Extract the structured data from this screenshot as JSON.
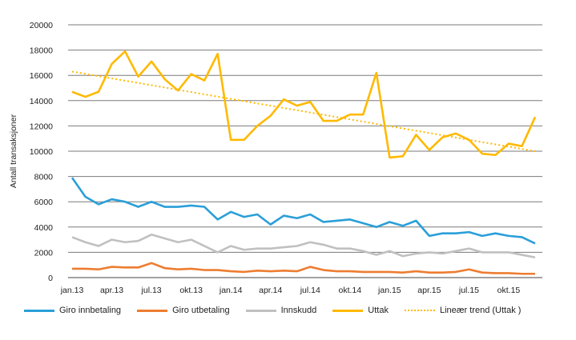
{
  "chart_data": {
    "type": "line",
    "ylabel": "Antall transaksjoner",
    "ylim": [
      0,
      20000
    ],
    "yticks": [
      "0",
      "2000",
      "4000",
      "6000",
      "8000",
      "10000",
      "12000",
      "14000",
      "16000",
      "18000",
      "20000"
    ],
    "xtick_labels": [
      "jan.13",
      "apr.13",
      "jul.13",
      "okt.13",
      "jan.14",
      "apr.14",
      "jul.14",
      "okt.14",
      "jan.15",
      "apr.15",
      "jul.15",
      "okt.15"
    ],
    "grid": true,
    "legend_position": "bottom",
    "series": [
      {
        "name": "Giro innbetaling",
        "color": "#2a9fd8",
        "values": [
          7900,
          6400,
          5800,
          6200,
          6000,
          5600,
          6000,
          5600,
          5600,
          5700,
          5600,
          4600,
          5200,
          4800,
          5000,
          4200,
          4900,
          4700,
          5000,
          4400,
          4500,
          4600,
          4300,
          4000,
          4400,
          4100,
          4500,
          3300,
          3500,
          3500,
          3600,
          3300,
          3500,
          3300,
          3200,
          2700
        ]
      },
      {
        "name": "Giro utbetaling",
        "color": "#ed7d31",
        "values": [
          700,
          700,
          650,
          850,
          800,
          800,
          1150,
          750,
          650,
          700,
          600,
          600,
          500,
          450,
          550,
          500,
          550,
          500,
          850,
          600,
          500,
          500,
          450,
          450,
          450,
          400,
          500,
          400,
          400,
          450,
          650,
          400,
          350,
          350,
          300,
          300
        ]
      },
      {
        "name": "Innskudd",
        "color": "#c0c0c0",
        "values": [
          3200,
          2800,
          2500,
          3000,
          2800,
          2900,
          3400,
          3100,
          2800,
          3000,
          2500,
          2000,
          2500,
          2200,
          2300,
          2300,
          2400,
          2500,
          2800,
          2600,
          2300,
          2300,
          2100,
          1800,
          2100,
          1700,
          1900,
          2000,
          1900,
          2100,
          2300,
          2000,
          2000,
          2000,
          1800,
          1600
        ]
      },
      {
        "name": "Uttak",
        "color": "#ffb900",
        "values": [
          14700,
          14300,
          14700,
          16900,
          17900,
          15900,
          17100,
          15700,
          14800,
          16100,
          15600,
          17700,
          10900,
          10900,
          12000,
          12800,
          14100,
          13600,
          13900,
          12400,
          12400,
          12900,
          12900,
          16200,
          9500,
          9600,
          11300,
          10100,
          11100,
          11400,
          10900,
          9800,
          9700,
          10600,
          10400,
          12700
        ]
      }
    ],
    "trend": {
      "name": "Lineær trend (Uttak )",
      "color": "#ffb900",
      "start": 16300,
      "end": 10000
    }
  }
}
